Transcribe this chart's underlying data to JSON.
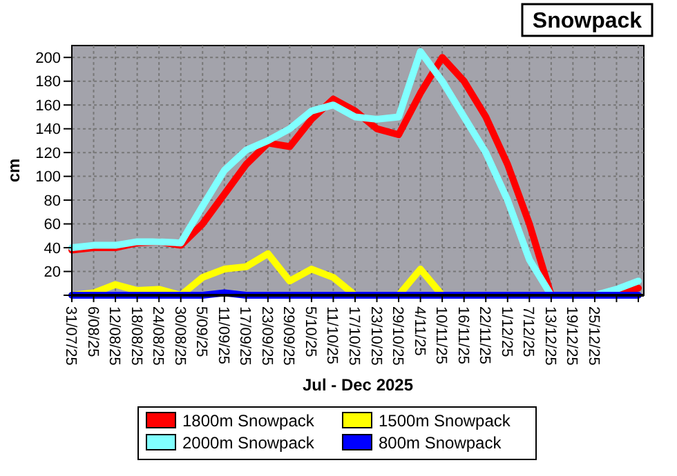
{
  "chart_data": {
    "type": "line",
    "title": "Snowpack",
    "xlabel": "Jul - Dec 2025",
    "ylabel": "cm",
    "categories": [
      "31/07/25",
      "6/08/25",
      "12/08/25",
      "18/08/25",
      "24/08/25",
      "30/08/25",
      "5/09/25",
      "11/09/25",
      "17/09/25",
      "23/09/25",
      "29/09/25",
      "5/10/25",
      "11/10/25",
      "17/10/25",
      "23/10/25",
      "29/10/25",
      "4/11/25",
      "10/11/25",
      "16/11/25",
      "22/11/25",
      "1/12/25",
      "7/12/25",
      "13/12/25",
      "19/12/25",
      "25/12/25",
      null,
      null
    ],
    "series": [
      {
        "name": "1800m Snowpack",
        "color": "#ff0000",
        "values": [
          38,
          40,
          40,
          44,
          45,
          42,
          60,
          85,
          110,
          128,
          125,
          148,
          165,
          155,
          140,
          135,
          170,
          200,
          180,
          150,
          110,
          60,
          0,
          0,
          0,
          2,
          6
        ]
      },
      {
        "name": "2000m Snowpack",
        "color": "#80ffff",
        "values": [
          40,
          42,
          42,
          45,
          45,
          44,
          75,
          105,
          122,
          130,
          140,
          155,
          160,
          150,
          148,
          150,
          205,
          180,
          150,
          120,
          80,
          30,
          0,
          0,
          0,
          5,
          12
        ]
      },
      {
        "name": "1500m Snowpack",
        "color": "#ffff00",
        "values": [
          0,
          2,
          9,
          4,
          5,
          0,
          15,
          22,
          24,
          35,
          12,
          22,
          15,
          0,
          0,
          0,
          22,
          0,
          null,
          null,
          null,
          null,
          null,
          null,
          null,
          null,
          null
        ]
      },
      {
        "name": "800m Snowpack",
        "color": "#0000ff",
        "values": [
          0,
          0,
          0,
          0,
          0,
          0,
          0,
          2,
          0,
          0,
          0,
          0,
          0,
          0,
          0,
          0,
          0,
          0,
          0,
          0,
          0,
          0,
          0,
          0,
          0,
          0,
          0
        ]
      }
    ],
    "ylim": [
      0,
      210
    ],
    "yticks": [
      {
        "value": 0,
        "label": null
      },
      20,
      40,
      60,
      80,
      100,
      120,
      140,
      160,
      180,
      200
    ],
    "grid": true,
    "legend": "bottom",
    "marker": "none",
    "line_style": "solid"
  }
}
